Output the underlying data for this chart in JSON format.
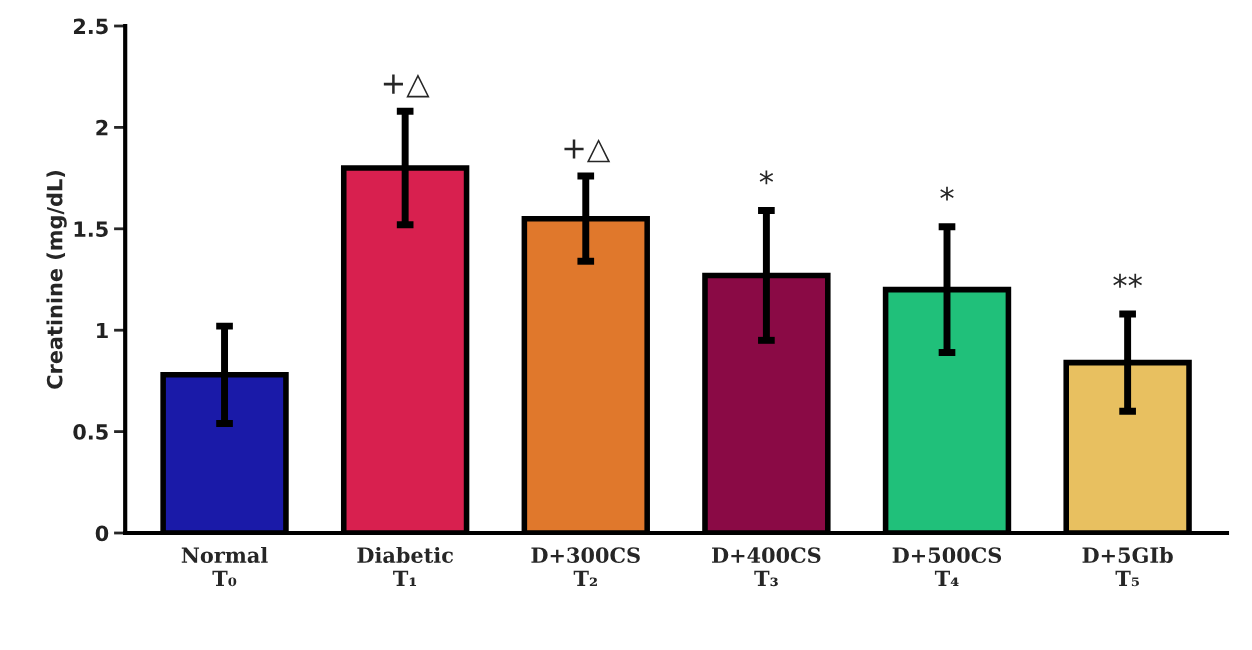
{
  "chart_data": {
    "type": "bar",
    "ylabel": "Creatinine (mg/dL)",
    "categories": [
      "Normal\nT₀",
      "Diabetic\nT₁",
      "D+300CS\nT₂",
      "D+400CS\nT₃",
      "D+500CS\nT₄",
      "D+5GIb\nT₅"
    ],
    "values": [
      0.78,
      1.8,
      1.55,
      1.27,
      1.2,
      0.84
    ],
    "errors": [
      0.24,
      0.28,
      0.21,
      0.32,
      0.31,
      0.24
    ],
    "colors": [
      "#1a1aa8",
      "#d8204f",
      "#e0782c",
      "#8a0a45",
      "#20c07a",
      "#e8c060"
    ],
    "ylim": [
      0,
      2.5
    ],
    "yticks": [
      0,
      0.5,
      1,
      1.5,
      2,
      2.5
    ],
    "grid": false,
    "annotations": [
      {
        "text": "+△",
        "x": "Diabetic\nT₁",
        "y": 2.08
      },
      {
        "text": "+△",
        "x": "D+300CS\nT₂",
        "y": 1.76
      },
      {
        "text": "*",
        "x": "D+400CS\nT₃",
        "y": 1.59
      },
      {
        "text": "*",
        "x": "D+500CS\nT₄",
        "y": 1.51
      },
      {
        "text": "**",
        "x": "D+5GIb\nT₅",
        "y": 1.08
      }
    ]
  }
}
